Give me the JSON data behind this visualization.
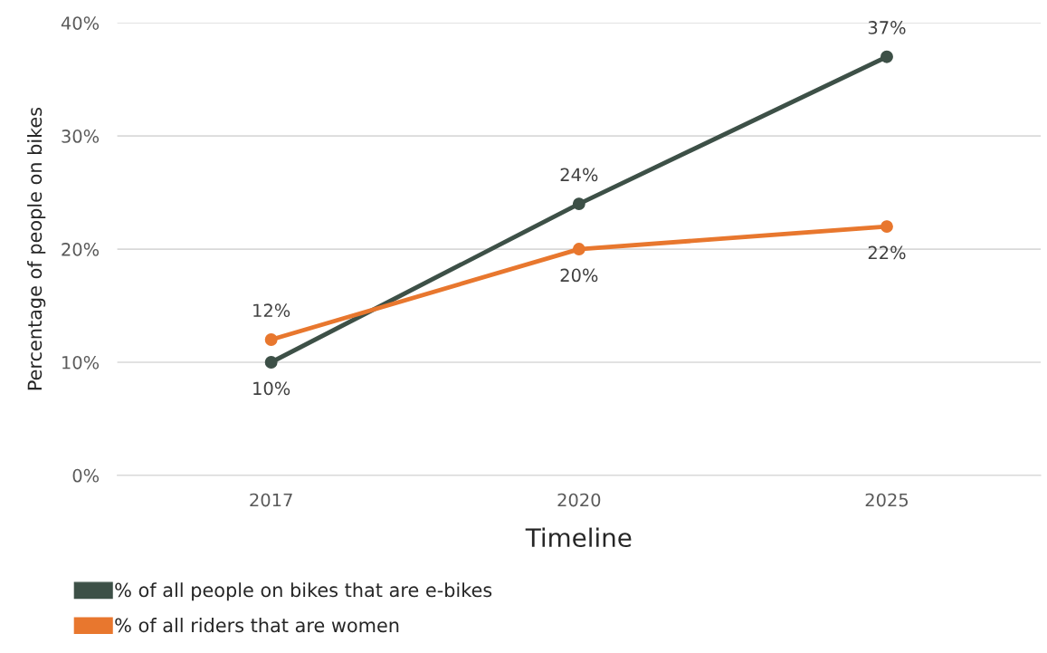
{
  "chart_data": {
    "type": "line",
    "xlabel": "Timeline",
    "ylabel": "Percentage of people on bikes",
    "categories": [
      "2017",
      "2020",
      "2025"
    ],
    "series": [
      {
        "name": "% of all people on bikes that are e-bikes",
        "color": "#3d5047",
        "values": [
          10,
          24,
          37
        ],
        "value_labels": [
          "10%",
          "24%",
          "37%"
        ]
      },
      {
        "name": "% of all riders that are women",
        "color": "#e8772e",
        "values": [
          12,
          20,
          22
        ],
        "value_labels": [
          "12%",
          "20%",
          "22%"
        ]
      }
    ],
    "ylim": [
      0,
      40
    ],
    "yticks": [
      {
        "value": 0,
        "label": "0%"
      },
      {
        "value": 10,
        "label": "10%"
      },
      {
        "value": 20,
        "label": "20%"
      },
      {
        "value": 30,
        "label": "30%"
      },
      {
        "value": 40,
        "label": "40%"
      }
    ],
    "grid": "y",
    "legend": "bottom",
    "marker": "circle",
    "line_style": "solid"
  }
}
